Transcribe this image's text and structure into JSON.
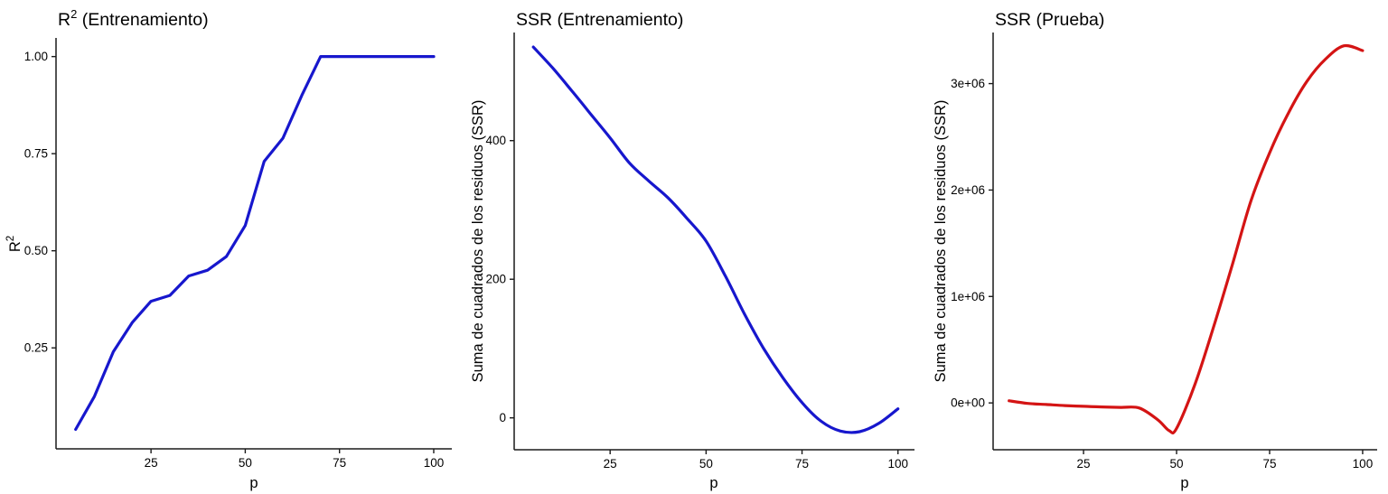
{
  "page": {
    "background": "#ffffff",
    "description_colors": {
      "train_line": "#1717cd",
      "test_line": "#d41414",
      "tick_label": "#4d4d4d",
      "axis_line": "#1a1a1a"
    }
  },
  "chart_data": [
    {
      "type": "line",
      "title": "R² (Entrenamiento)",
      "title_parts": {
        "base": "R",
        "sup": "2",
        "rest": " (Entrenamiento)"
      },
      "xlabel": "p",
      "ylabel": "R²",
      "ylabel_parts": {
        "base": "R",
        "sup": "2",
        "rest": ""
      },
      "line_color": "#1717cd",
      "smooth": false,
      "grid": "off",
      "legend": "none",
      "x": [
        5,
        10,
        15,
        20,
        25,
        30,
        35,
        40,
        45,
        50,
        55,
        60,
        65,
        70,
        75,
        80,
        85,
        90,
        95,
        100
      ],
      "y": [
        0.04,
        0.125,
        0.24,
        0.315,
        0.37,
        0.385,
        0.435,
        0.45,
        0.485,
        0.565,
        0.73,
        0.79,
        0.9,
        1.0,
        1.0,
        1.0,
        1.0,
        1.0,
        1.0,
        1.0
      ],
      "xlim": [
        -0.2,
        104.8
      ],
      "ylim": [
        -0.01,
        1.048
      ],
      "x_ticks": {
        "values": [
          25,
          50,
          75,
          100
        ],
        "labels": [
          "25",
          "50",
          "75",
          "100"
        ]
      },
      "y_ticks": {
        "values": [
          0.25,
          0.5,
          0.75,
          1.0
        ],
        "labels": [
          "0.25",
          "0.50",
          "0.75",
          "1.00"
        ]
      }
    },
    {
      "type": "line",
      "title": "SSR (Entrenamiento)",
      "title_parts": {
        "base": "SSR (Entrenamiento)",
        "sup": "",
        "rest": ""
      },
      "xlabel": "p",
      "ylabel": "Suma de cuadrados de los residuos (SSR)",
      "ylabel_parts": {
        "base": "Suma de cuadrados de los residuos (SSR)",
        "sup": "",
        "rest": ""
      },
      "line_color": "#1717cd",
      "smooth": true,
      "grid": "off",
      "legend": "none",
      "x": [
        5,
        10,
        15,
        20,
        25,
        30,
        35,
        40,
        45,
        50,
        55,
        60,
        65,
        70,
        75,
        80,
        85,
        90,
        95,
        100
      ],
      "y": [
        535,
        505,
        472,
        438,
        404,
        368,
        342,
        318,
        288,
        255,
        205,
        150,
        100,
        58,
        22,
        -5,
        -19,
        -20,
        -8,
        13
      ],
      "xlim": [
        0,
        104.3
      ],
      "ylim": [
        -46,
        556
      ],
      "x_ticks": {
        "values": [
          25,
          50,
          75,
          100
        ],
        "labels": [
          "25",
          "50",
          "75",
          "100"
        ]
      },
      "y_ticks": {
        "values": [
          0,
          200,
          400
        ],
        "labels": [
          "0",
          "200",
          "400"
        ]
      }
    },
    {
      "type": "line",
      "title": "SSR (Prueba)",
      "title_parts": {
        "base": "SSR (Prueba)",
        "sup": "",
        "rest": ""
      },
      "xlabel": "p",
      "ylabel": "Suma de cuadrados de los residuos (SSR)",
      "ylabel_parts": {
        "base": "Suma de cuadrados de los residuos (SSR)",
        "sup": "",
        "rest": ""
      },
      "line_color": "#d41414",
      "smooth": true,
      "grid": "off",
      "legend": "none",
      "x": [
        5,
        10,
        15,
        20,
        25,
        30,
        35,
        40,
        45,
        48,
        50,
        55,
        60,
        65,
        70,
        75,
        80,
        85,
        90,
        95,
        100
      ],
      "y": [
        20000,
        -5000,
        -15000,
        -25000,
        -32000,
        -38000,
        -42000,
        -48000,
        -160000,
        -260000,
        -240000,
        180000,
        720000,
        1300000,
        1900000,
        2350000,
        2720000,
        3020000,
        3230000,
        3355000,
        3310000
      ],
      "xlim": [
        0.7,
        103.9
      ],
      "ylim": [
        -440000,
        3480000
      ],
      "x_ticks": {
        "values": [
          25,
          50,
          75,
          100
        ],
        "labels": [
          "25",
          "50",
          "75",
          "100"
        ]
      },
      "y_ticks": {
        "values": [
          0,
          1000000,
          2000000,
          3000000
        ],
        "labels": [
          "0e+00",
          "1e+06",
          "2e+06",
          "3e+06"
        ]
      }
    }
  ]
}
